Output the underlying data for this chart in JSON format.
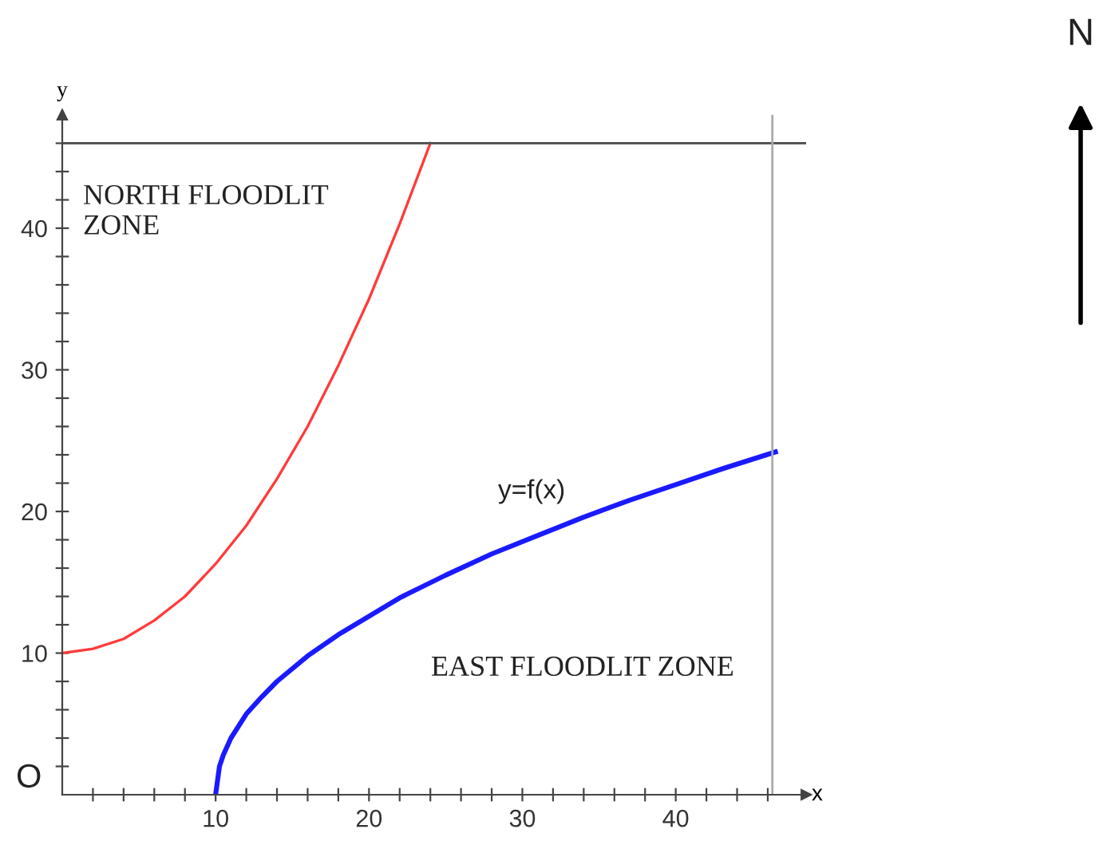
{
  "chart_data": {
    "type": "line",
    "xlabel": "x",
    "ylabel": "y",
    "series": [
      {
        "color": "#ff3b3b",
        "x": [
          0,
          2,
          4,
          6,
          8,
          10,
          12,
          14,
          16,
          18,
          20,
          22,
          24
        ],
        "values": [
          10,
          10.3,
          11,
          12.3,
          14,
          16.3,
          19,
          22.3,
          26,
          30.3,
          35,
          40.3,
          46
        ]
      },
      {
        "color": "#1a1aff",
        "x": [
          10,
          10.25,
          10.5,
          11,
          12,
          13,
          14,
          16,
          18,
          20,
          22,
          25,
          28,
          31,
          34,
          37,
          40,
          43,
          46.5
        ],
        "values": [
          0,
          2,
          2.8,
          4,
          5.7,
          6.9,
          8,
          9.8,
          11.3,
          12.6,
          13.9,
          15.5,
          17,
          18.3,
          19.6,
          20.8,
          21.9,
          23,
          24.2
        ]
      }
    ],
    "xlim": [
      0,
      48.5
    ],
    "ylim": [
      0,
      48
    ],
    "xticks": [
      {
        "value": 2,
        "label": null
      },
      {
        "value": 4,
        "label": null
      },
      {
        "value": 6,
        "label": null
      },
      {
        "value": 8,
        "label": null
      },
      10,
      {
        "value": 12,
        "label": null
      },
      {
        "value": 14,
        "label": null
      },
      {
        "value": 16,
        "label": null
      },
      {
        "value": 18,
        "label": null
      },
      20,
      {
        "value": 22,
        "label": null
      },
      {
        "value": 24,
        "label": null
      },
      {
        "value": 26,
        "label": null
      },
      {
        "value": 28,
        "label": null
      },
      30,
      {
        "value": 32,
        "label": null
      },
      {
        "value": 34,
        "label": null
      },
      {
        "value": 36,
        "label": null
      },
      {
        "value": 38,
        "label": null
      },
      40,
      {
        "value": 42,
        "label": null
      },
      {
        "value": 44,
        "label": null
      },
      {
        "value": 46,
        "label": null
      }
    ],
    "yticks": [
      {
        "value": 2,
        "label": null
      },
      {
        "value": 4,
        "label": null
      },
      {
        "value": 6,
        "label": null
      },
      {
        "value": 8,
        "label": null
      },
      10,
      {
        "value": 12,
        "label": null
      },
      {
        "value": 14,
        "label": null
      },
      {
        "value": 16,
        "label": null
      },
      {
        "value": 18,
        "label": null
      },
      20,
      {
        "value": 22,
        "label": null
      },
      {
        "value": 24,
        "label": null
      },
      {
        "value": 26,
        "label": null
      },
      {
        "value": 28,
        "label": null
      },
      30,
      {
        "value": 32,
        "label": null
      },
      {
        "value": 34,
        "label": null
      },
      {
        "value": 36,
        "label": null
      },
      {
        "value": 38,
        "label": null
      },
      40,
      {
        "value": 42,
        "label": null
      },
      {
        "value": 44,
        "label": null
      },
      {
        "value": 46,
        "label": null
      }
    ],
    "ref_lines": [
      {
        "axis": "y",
        "value": 46,
        "color": "#555555"
      },
      {
        "axis": "x",
        "value": 46.3,
        "color": "#aaaaaa"
      }
    ],
    "annotations": [
      "NORTH FLOODLIT\nZONE",
      "y=f(x)",
      "EAST FLOODLIT ZONE",
      "O",
      "N"
    ],
    "grid": false,
    "legend": false,
    "marker": "none",
    "line_style": "solid"
  }
}
